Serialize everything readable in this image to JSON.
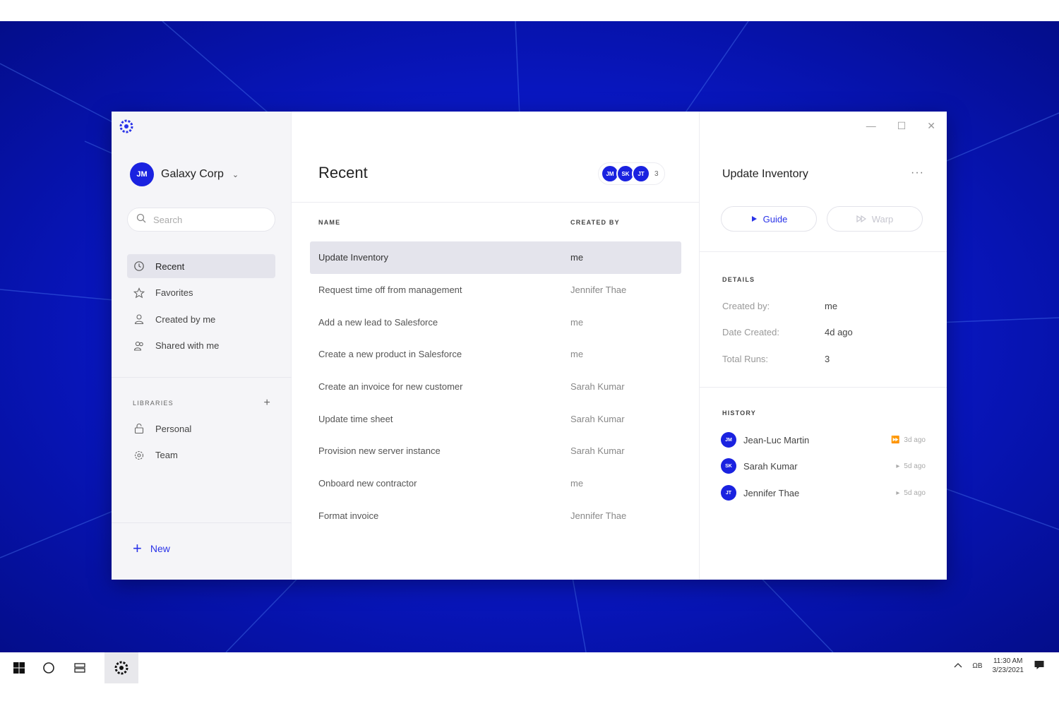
{
  "app": {
    "org_initials": "JM",
    "org_name": "Galaxy Corp",
    "search_placeholder": "Search"
  },
  "sidebar": {
    "nav": [
      {
        "label": "Recent",
        "icon": "clock-history-icon"
      },
      {
        "label": "Favorites",
        "icon": "star-icon"
      },
      {
        "label": "Created by me",
        "icon": "user-icon"
      },
      {
        "label": "Shared with me",
        "icon": "users-icon"
      }
    ],
    "libraries_label": "LIBRARIES",
    "libraries": [
      {
        "label": "Personal",
        "icon": "lock-icon"
      },
      {
        "label": "Team",
        "icon": "team-icon"
      }
    ],
    "new_label": "New"
  },
  "main": {
    "title": "Recent",
    "collaborators": [
      "JM",
      "SK",
      "JT"
    ],
    "collaborators_more": "3",
    "columns": [
      "NAME",
      "CREATED BY"
    ],
    "rows": [
      {
        "name": "Update Inventory",
        "created_by": "me"
      },
      {
        "name": "Request time off from management",
        "created_by": "Jennifer Thae"
      },
      {
        "name": "Add a new lead to Salesforce",
        "created_by": "me"
      },
      {
        "name": "Create a new product in Salesforce",
        "created_by": "me"
      },
      {
        "name": "Create an invoice for new customer",
        "created_by": "Sarah Kumar"
      },
      {
        "name": "Update time sheet",
        "created_by": "Sarah Kumar"
      },
      {
        "name": "Provision new server instance",
        "created_by": "Sarah Kumar"
      },
      {
        "name": "Onboard new contractor",
        "created_by": "me"
      },
      {
        "name": "Format invoice",
        "created_by": "Jennifer Thae"
      }
    ]
  },
  "detail": {
    "title": "Update Inventory",
    "more": "···",
    "guide_label": "Guide",
    "warp_label": "Warp",
    "details_label": "DETAILS",
    "fields": [
      {
        "key": "Created by:",
        "value": "me"
      },
      {
        "key": "Date Created:",
        "value": "4d ago"
      },
      {
        "key": "Total Runs:",
        "value": "3"
      }
    ],
    "history_label": "HISTORY",
    "history": [
      {
        "initials": "JM",
        "name": "Jean-Luc Martin",
        "time": "3d ago",
        "type": "warp"
      },
      {
        "initials": "SK",
        "name": "Sarah Kumar",
        "time": "5d ago",
        "type": "guide"
      },
      {
        "initials": "JT",
        "name": "Jennifer Thae",
        "time": "5d ago",
        "type": "guide"
      }
    ]
  },
  "window_controls": {
    "minimize": "—",
    "maximize": "☐",
    "close": "✕"
  },
  "taskbar": {
    "time": "11:30 AM",
    "date": "3/23/2021",
    "lang": "ΩB"
  },
  "colors": {
    "accent": "#2a33e8",
    "avatar": "#1a22e0"
  }
}
